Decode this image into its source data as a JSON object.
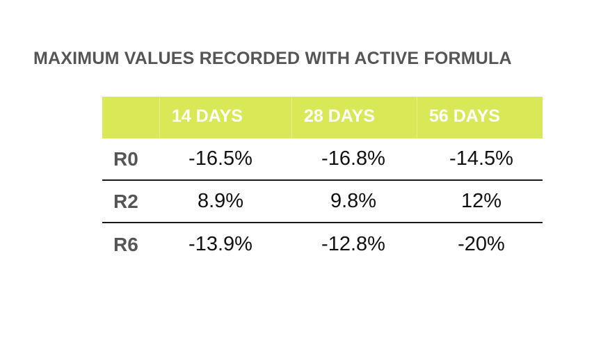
{
  "title": "MAXIMUM VALUES RECORDED WITH ACTIVE FORMULA",
  "colors": {
    "header_bg": "#d9e856",
    "header_text": "#ffffff",
    "title_text": "#555555",
    "row_label_text": "#555555",
    "value_text": "#111111",
    "rule": "#1a1a1a"
  },
  "chart_data": {
    "type": "table",
    "title": "MAXIMUM VALUES RECORDED WITH ACTIVE FORMULA",
    "columns": [
      "",
      "14 DAYS",
      "28 DAYS",
      "56 DAYS"
    ],
    "rows": [
      {
        "label": "R0",
        "values": [
          "-16.5%",
          "-16.8%",
          "-14.5%"
        ]
      },
      {
        "label": "R2",
        "values": [
          "8.9%",
          "9.8%",
          "12%"
        ]
      },
      {
        "label": "R6",
        "values": [
          "-13.9%",
          "-12.8%",
          "-20%"
        ]
      }
    ]
  }
}
